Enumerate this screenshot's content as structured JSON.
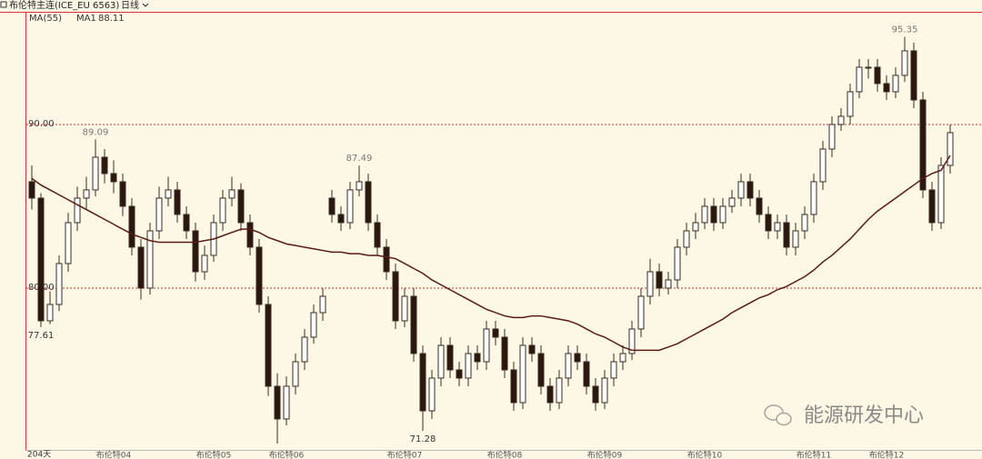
{
  "chart_data": {
    "type": "candlestick",
    "title": "布伦特主连(ICE_EU 6563)",
    "period": "日线",
    "indicator": "MA(55)",
    "period_count": "204天",
    "watermark": "能源研发中心",
    "ylim": [
      70.11,
      96.83
    ],
    "yticks": [
      {
        "value": 80,
        "label": "80.00"
      },
      {
        "value": 90,
        "label": "90.00"
      }
    ],
    "grid": true,
    "up_color": "#ffffff",
    "down_color": "#2a1710",
    "edge_color": "#3a2a20",
    "categories": [
      null,
      null,
      null,
      null,
      null,
      null,
      null,
      null,
      null,
      "布伦特04",
      null,
      null,
      null,
      null,
      null,
      null,
      null,
      null,
      null,
      null,
      "布伦特05",
      null,
      null,
      null,
      null,
      null,
      null,
      null,
      "布伦特06",
      null,
      null,
      null,
      null,
      null,
      null,
      null,
      null,
      null,
      null,
      null,
      null,
      "布伦特07",
      null,
      null,
      null,
      null,
      null,
      null,
      null,
      null,
      null,
      null,
      "布伦特08",
      null,
      null,
      null,
      null,
      null,
      null,
      null,
      null,
      null,
      null,
      "布伦特09",
      null,
      null,
      null,
      null,
      null,
      null,
      null,
      null,
      null,
      null,
      "布伦特10",
      null,
      null,
      null,
      null,
      null,
      null,
      null,
      null,
      null,
      null,
      null,
      "布伦特11",
      null,
      null,
      null,
      null,
      null,
      null,
      null,
      "布伦特12",
      null,
      null,
      null,
      null,
      null,
      null,
      null
    ],
    "candles": [
      [
        86.5,
        87.5,
        84.8,
        85.5
      ],
      [
        85.5,
        85.8,
        77.61,
        78.0
      ],
      [
        78.0,
        79.8,
        77.8,
        79.0
      ],
      [
        79.0,
        82.0,
        78.6,
        81.5
      ],
      [
        81.5,
        84.6,
        81.0,
        84.0
      ],
      [
        84.0,
        86.2,
        83.5,
        85.5
      ],
      [
        85.5,
        86.8,
        84.8,
        86.0
      ],
      [
        86.0,
        89.09,
        85.6,
        88.0
      ],
      [
        88.0,
        88.5,
        86.4,
        87.0
      ],
      [
        87.0,
        87.8,
        85.8,
        86.5
      ],
      [
        86.5,
        87.0,
        84.4,
        85.0
      ],
      [
        85.0,
        85.5,
        82.0,
        82.5
      ],
      [
        82.5,
        83.0,
        79.3,
        80.0
      ],
      [
        80.0,
        84.0,
        79.6,
        83.5
      ],
      [
        83.5,
        86.2,
        83.0,
        85.5
      ],
      [
        85.5,
        86.8,
        85.0,
        86.0
      ],
      [
        86.0,
        86.5,
        84.0,
        84.5
      ],
      [
        84.5,
        85.0,
        83.0,
        83.5
      ],
      [
        83.5,
        84.0,
        80.4,
        81.0
      ],
      [
        81.0,
        82.6,
        80.5,
        82.0
      ],
      [
        82.0,
        84.5,
        81.6,
        84.0
      ],
      [
        84.0,
        86.0,
        83.5,
        85.5
      ],
      [
        85.5,
        86.8,
        85.0,
        86.0
      ],
      [
        86.0,
        86.4,
        83.5,
        84.0
      ],
      [
        84.0,
        84.5,
        82.0,
        82.5
      ],
      [
        82.5,
        83.0,
        78.5,
        79.0
      ],
      [
        79.0,
        79.5,
        73.4,
        74.0
      ],
      [
        74.0,
        74.8,
        70.5,
        72.0
      ],
      [
        72.0,
        74.6,
        71.6,
        74.0
      ],
      [
        74.0,
        76.0,
        73.5,
        75.5
      ],
      [
        75.5,
        77.5,
        75.0,
        77.0
      ],
      [
        77.0,
        79.0,
        76.6,
        78.5
      ],
      [
        78.5,
        80.0,
        78.0,
        79.5
      ],
      [
        85.5,
        86.0,
        84.0,
        84.5
      ],
      [
        84.5,
        85.0,
        83.5,
        84.0
      ],
      [
        84.0,
        86.5,
        83.6,
        86.0
      ],
      [
        86.0,
        87.49,
        85.6,
        86.5
      ],
      [
        86.5,
        87.0,
        83.5,
        84.0
      ],
      [
        84.0,
        84.5,
        82.0,
        82.5
      ],
      [
        82.5,
        83.0,
        80.5,
        81.0
      ],
      [
        81.0,
        81.5,
        77.5,
        78.0
      ],
      [
        78.0,
        80.0,
        77.6,
        79.5
      ],
      [
        79.5,
        80.0,
        75.5,
        76.0
      ],
      [
        76.0,
        76.5,
        71.28,
        72.5
      ],
      [
        72.5,
        75.0,
        72.0,
        74.5
      ],
      [
        74.5,
        77.0,
        74.0,
        76.5
      ],
      [
        76.5,
        77.0,
        74.5,
        75.0
      ],
      [
        75.0,
        75.5,
        74.0,
        74.5
      ],
      [
        74.5,
        76.5,
        74.0,
        76.0
      ],
      [
        76.0,
        76.5,
        75.0,
        75.5
      ],
      [
        75.5,
        78.0,
        75.0,
        77.5
      ],
      [
        77.5,
        78.0,
        76.5,
        77.0
      ],
      [
        77.0,
        77.5,
        74.5,
        75.0
      ],
      [
        75.0,
        75.5,
        72.5,
        73.0
      ],
      [
        73.0,
        77.0,
        72.6,
        76.5
      ],
      [
        76.5,
        77.0,
        75.5,
        76.0
      ],
      [
        76.0,
        76.5,
        73.5,
        74.0
      ],
      [
        74.0,
        74.5,
        72.5,
        73.0
      ],
      [
        73.0,
        75.0,
        72.6,
        74.5
      ],
      [
        74.5,
        76.5,
        74.0,
        76.0
      ],
      [
        76.0,
        76.5,
        75.0,
        75.5
      ],
      [
        75.5,
        76.0,
        73.5,
        74.0
      ],
      [
        74.0,
        74.5,
        72.5,
        73.0
      ],
      [
        73.0,
        75.0,
        72.6,
        74.5
      ],
      [
        74.5,
        76.0,
        74.0,
        75.5
      ],
      [
        75.5,
        76.5,
        75.0,
        76.0
      ],
      [
        76.0,
        78.0,
        75.6,
        77.5
      ],
      [
        77.5,
        80.0,
        77.0,
        79.5
      ],
      [
        79.5,
        81.8,
        79.0,
        81.0
      ],
      [
        81.0,
        81.5,
        79.5,
        80.0
      ],
      [
        80.0,
        81.0,
        79.6,
        80.5
      ],
      [
        80.5,
        83.0,
        80.0,
        82.5
      ],
      [
        82.5,
        84.0,
        82.0,
        83.5
      ],
      [
        83.5,
        84.6,
        83.0,
        84.0
      ],
      [
        84.0,
        85.5,
        83.6,
        85.0
      ],
      [
        85.0,
        85.5,
        83.5,
        84.0
      ],
      [
        84.0,
        85.5,
        83.6,
        85.0
      ],
      [
        85.0,
        86.0,
        84.6,
        85.5
      ],
      [
        85.5,
        87.0,
        85.0,
        86.5
      ],
      [
        86.5,
        87.0,
        85.0,
        85.5
      ],
      [
        85.5,
        86.0,
        84.0,
        84.5
      ],
      [
        84.5,
        85.0,
        83.0,
        83.5
      ],
      [
        83.5,
        84.5,
        83.0,
        84.0
      ],
      [
        84.0,
        84.5,
        82.0,
        82.5
      ],
      [
        82.5,
        84.0,
        82.0,
        83.5
      ],
      [
        83.5,
        85.0,
        83.0,
        84.5
      ],
      [
        84.5,
        87.0,
        84.0,
        86.5
      ],
      [
        86.5,
        89.0,
        86.0,
        88.5
      ],
      [
        88.5,
        90.5,
        88.0,
        90.0
      ],
      [
        90.0,
        91.0,
        89.6,
        90.5
      ],
      [
        90.5,
        92.5,
        90.0,
        92.0
      ],
      [
        92.0,
        94.0,
        91.6,
        93.5
      ],
      [
        93.5,
        94.0,
        92.8,
        93.5
      ],
      [
        93.5,
        94.0,
        92.0,
        92.5
      ],
      [
        92.5,
        93.0,
        91.5,
        92.0
      ],
      [
        92.0,
        93.5,
        91.6,
        93.0
      ],
      [
        93.0,
        95.35,
        92.6,
        94.5
      ],
      [
        94.5,
        95.0,
        91.0,
        91.5
      ],
      [
        91.5,
        92.0,
        85.5,
        86.0
      ],
      [
        86.0,
        86.5,
        83.5,
        84.0
      ],
      [
        84.0,
        88.0,
        83.6,
        87.5
      ],
      [
        87.5,
        90.0,
        87.0,
        89.5
      ]
    ],
    "extreme_labels": [
      [
        1,
        2
      ],
      [
        7,
        1
      ],
      [
        36,
        1
      ],
      [
        43,
        2
      ],
      [
        96,
        1
      ]
    ],
    "ma": {
      "name": "MA1",
      "color": "#5a1a14",
      "values": [
        86.7,
        86.3,
        86.0,
        85.7,
        85.4,
        85.1,
        84.8,
        84.5,
        84.2,
        83.9,
        83.6,
        83.3,
        83.1,
        82.9,
        82.8,
        82.8,
        82.8,
        82.8,
        82.8,
        82.9,
        83.0,
        83.2,
        83.4,
        83.6,
        83.6,
        83.4,
        83.1,
        82.9,
        82.7,
        82.6,
        82.5,
        82.4,
        82.3,
        82.2,
        82.2,
        82.1,
        82.1,
        82.0,
        82.0,
        81.9,
        81.8,
        81.5,
        81.2,
        80.9,
        80.5,
        80.2,
        79.9,
        79.6,
        79.3,
        79.0,
        78.7,
        78.5,
        78.3,
        78.2,
        78.2,
        78.3,
        78.3,
        78.2,
        78.1,
        78.0,
        77.8,
        77.5,
        77.2,
        77.0,
        76.7,
        76.4,
        76.2,
        76.2,
        76.2,
        76.2,
        76.4,
        76.6,
        76.9,
        77.2,
        77.5,
        77.8,
        78.1,
        78.5,
        78.8,
        79.1,
        79.4,
        79.6,
        79.9,
        80.1,
        80.4,
        80.7,
        81.1,
        81.6,
        82.0,
        82.5,
        83.0,
        83.6,
        84.2,
        84.7,
        85.1,
        85.5,
        85.9,
        86.3,
        86.7,
        87.0,
        87.2,
        88.11
      ]
    }
  }
}
